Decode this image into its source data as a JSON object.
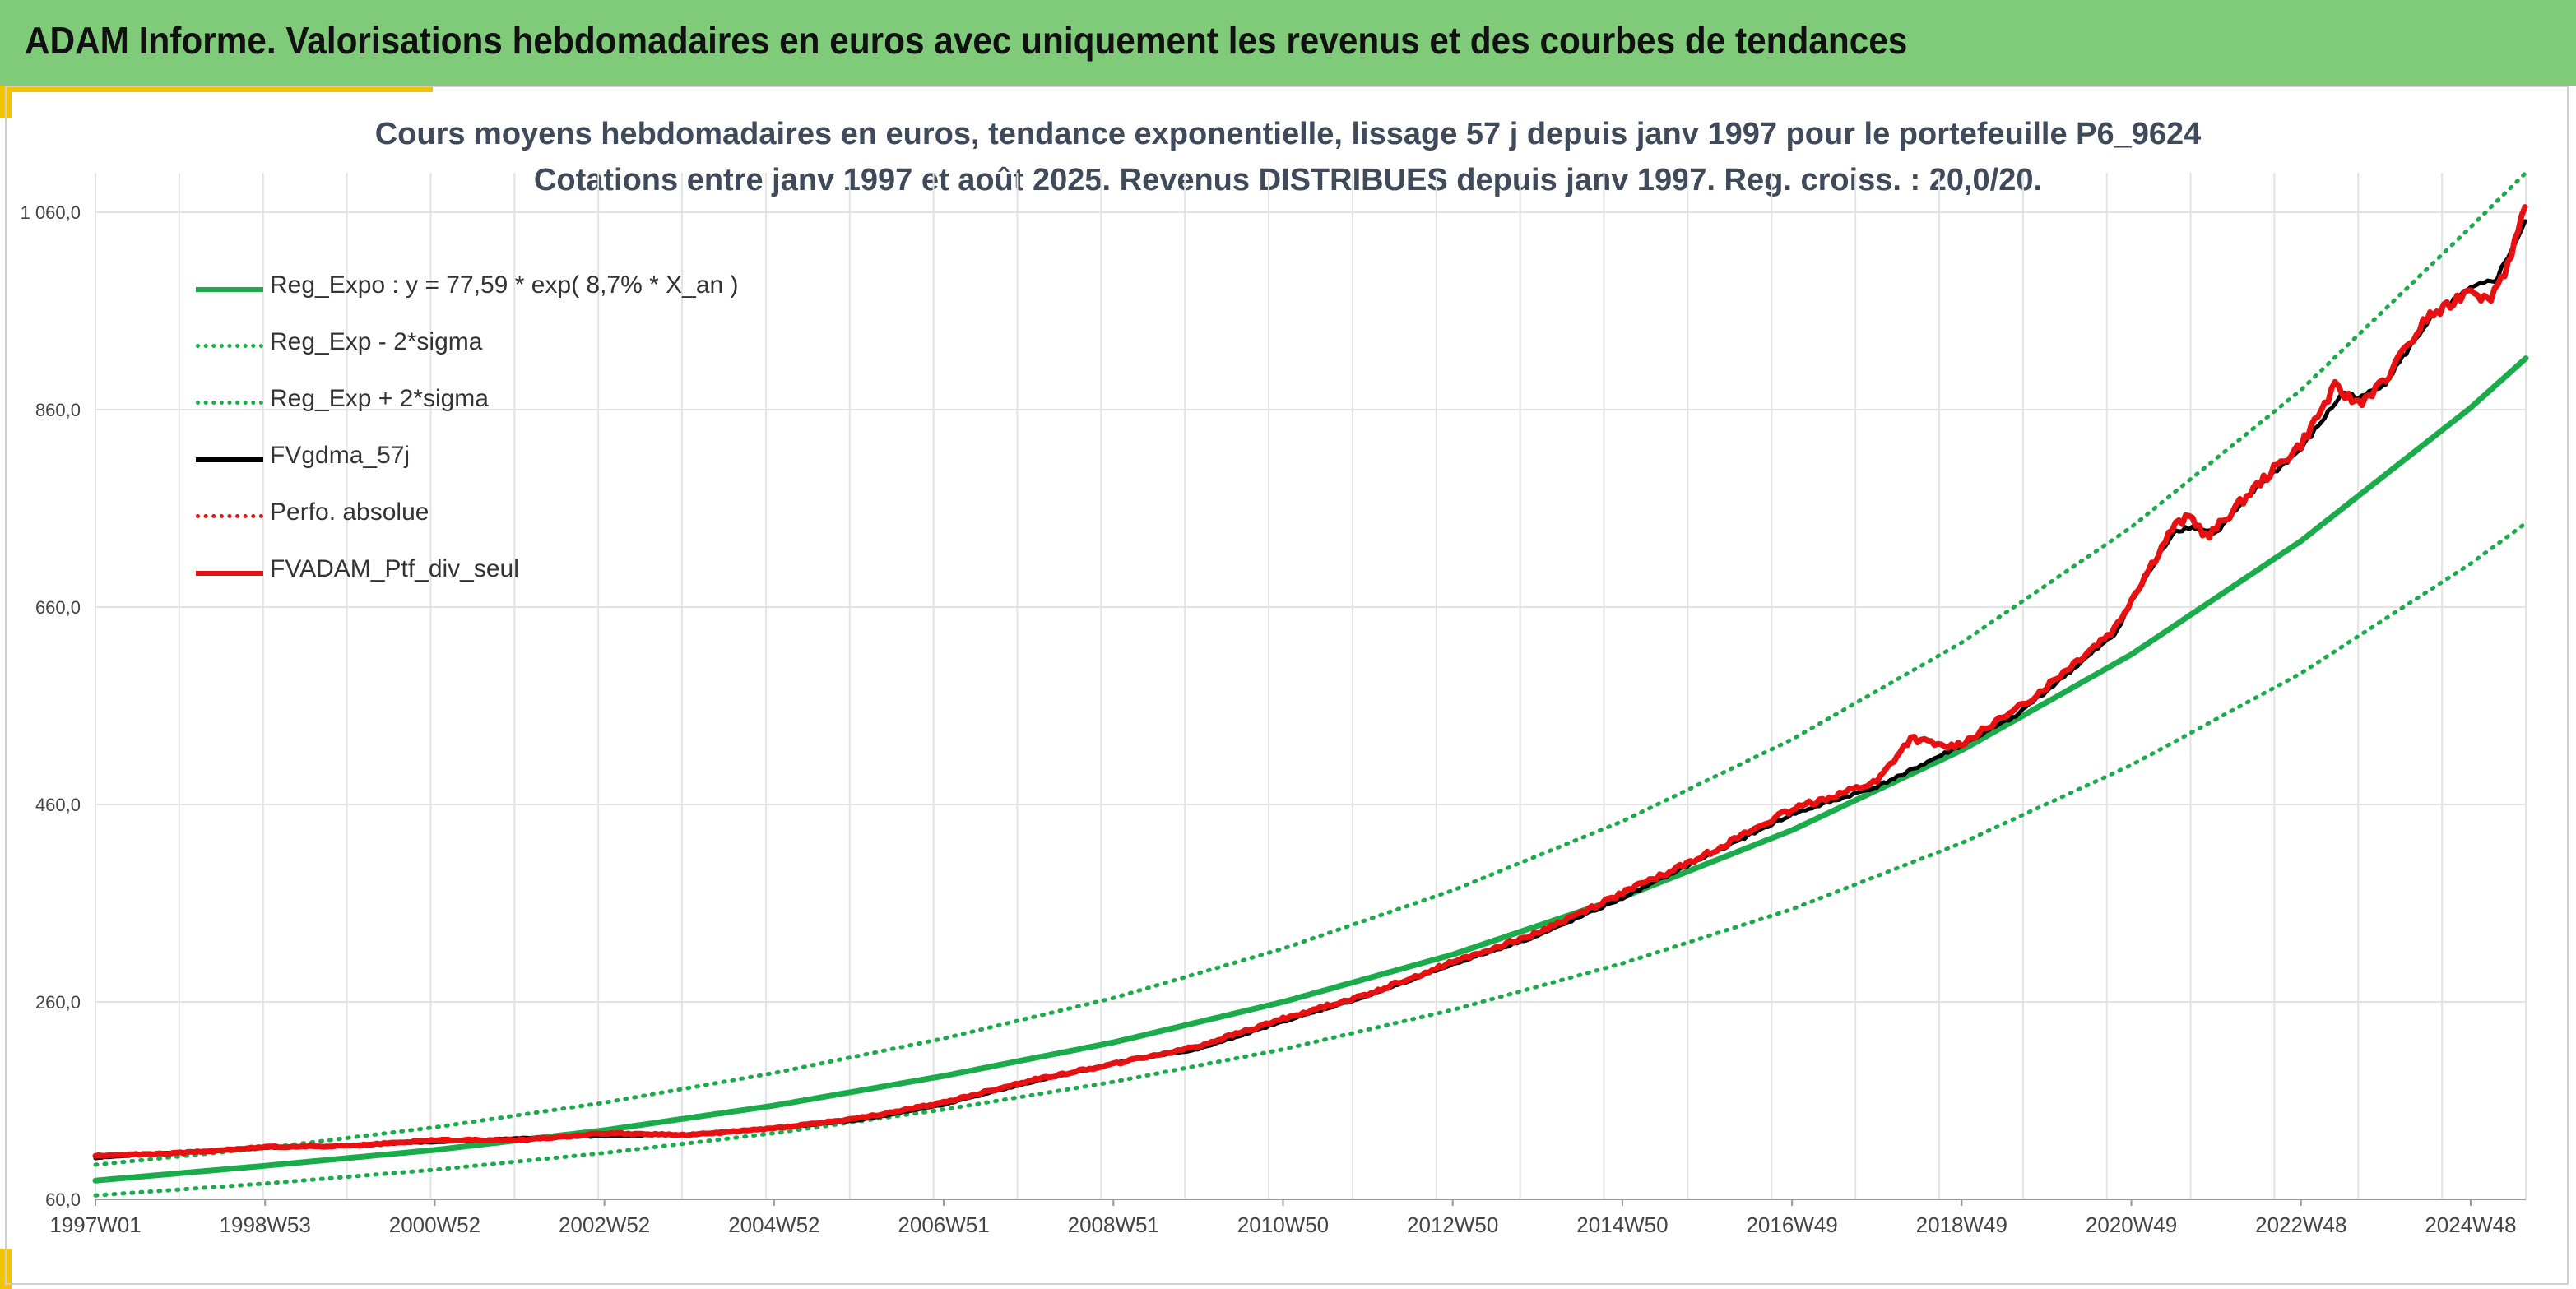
{
  "header": {
    "title": "ADAM Informe. Valorisations hebdomadaires en euros avec uniquement les revenus et des courbes de tendances"
  },
  "colors": {
    "header_bg": "#7fcb7a",
    "accent": "#f2c400",
    "trend": "#1aab4a",
    "price": "#e81010",
    "smooth": "#000000"
  },
  "chart_data": {
    "type": "line",
    "title_line1": "Cours moyens hebdomadaires en euros, tendance exponentielle, lissage 57 j depuis janv 1997 pour le portefeuille P6_9624",
    "title_line2": "Cotations entre janv 1997 et août 2025. Revenus DISTRIBUES depuis janv 1997. Reg. croiss. : 20,0/20.",
    "xlabel": "",
    "ylabel": "",
    "ylim": [
      60,
      1100
    ],
    "yticks": [
      60,
      260,
      460,
      660,
      860,
      1060
    ],
    "ytick_labels": [
      "60,0",
      "260,0",
      "460,0",
      "660,0",
      "860,0",
      "1 060,0"
    ],
    "x_unit": "year (fractional)",
    "xlim": [
      1997.0,
      2025.65
    ],
    "xticks": [
      1997.0,
      1999.0,
      2001.0,
      2003.0,
      2005.0,
      2007.0,
      2009.0,
      2011.0,
      2013.0,
      2015.0,
      2017.0,
      2019.0,
      2021.0,
      2023.0,
      2025.0
    ],
    "xtick_labels": [
      "1997W01",
      "1998W53",
      "2000W52",
      "2002W52",
      "2004W52",
      "2006W51",
      "2008W51",
      "2010W50",
      "2012W50",
      "2014W50",
      "2016W49",
      "2018W49",
      "2020W49",
      "2022W48",
      "2024W48"
    ],
    "grid": "vertical and horizontal",
    "legend_position": "top-left",
    "legend": [
      {
        "label": "Reg_Expo : y = 77,59 * exp( 8,7% *  X_an )",
        "color": "#1aab4a",
        "style": "solid"
      },
      {
        "label": "Reg_Exp - 2*sigma",
        "color": "#1aab4a",
        "style": "dotted"
      },
      {
        "label": "Reg_Exp + 2*sigma",
        "color": "#1aab4a",
        "style": "dotted"
      },
      {
        "label": "FVgdma_57j",
        "color": "#000000",
        "style": "solid"
      },
      {
        "label": "Perfo. absolue",
        "color": "#e81010",
        "style": "dotted"
      },
      {
        "label": "FVADAM_Ptf_div_seul",
        "color": "#e81010",
        "style": "solid"
      }
    ],
    "series": [
      {
        "name": "Reg_Expo : y = 77,59 * exp( 8,7% *  X_an )",
        "x": [
          1997,
          1999,
          2001,
          2003,
          2005,
          2007,
          2009,
          2011,
          2013,
          2015,
          2017,
          2019,
          2021,
          2023,
          2025,
          2025.65
        ],
        "y": [
          79,
          94,
          110,
          130,
          155,
          185,
          219,
          260,
          308,
          366,
          434,
          515,
          612,
          727,
          862,
          912
        ]
      },
      {
        "name": "Reg_Exp - 2*sigma",
        "x": [
          1997,
          1999,
          2001,
          2003,
          2005,
          2007,
          2009,
          2011,
          2013,
          2015,
          2017,
          2019,
          2021,
          2023,
          2025,
          2025.65
        ],
        "y": [
          64,
          76,
          90,
          107,
          127,
          151,
          179,
          212,
          252,
          299,
          354,
          421,
          500,
          593,
          704,
          745
        ]
      },
      {
        "name": "Reg_Exp + 2*sigma",
        "x": [
          1997,
          1999,
          2001,
          2003,
          2005,
          2007,
          2009,
          2011,
          2013,
          2015,
          2017,
          2019,
          2021,
          2023,
          2025,
          2025.65
        ],
        "y": [
          95,
          112,
          133,
          158,
          188,
          223,
          264,
          314,
          373,
          443,
          526,
          624,
          741,
          880,
          1045,
          1100
        ]
      },
      {
        "name": "FVgdma_57j",
        "x": [
          1997,
          1998,
          1999,
          2000,
          2001,
          2002,
          2003,
          2004,
          2005,
          2006,
          2007,
          2008,
          2009,
          2010,
          2011,
          2012,
          2013,
          2014,
          2015,
          2016,
          2017,
          2018,
          2019,
          2019.6,
          2020,
          2020.8,
          2021,
          2021.5,
          2021.7,
          2022,
          2022.5,
          2023,
          2023.5,
          2023.7,
          2024,
          2024.5,
          2024.7,
          2025,
          2025.3,
          2025.65
        ],
        "y": [
          102,
          108,
          112,
          115,
          118,
          122,
          124,
          126,
          132,
          140,
          156,
          178,
          198,
          212,
          240,
          266,
          298,
          327,
          365,
          408,
          450,
          478,
          520,
          548,
          575,
          632,
          665,
          737,
          741,
          735,
          783,
          820,
          878,
          871,
          888,
          950,
          965,
          982,
          992,
          1050
        ]
      },
      {
        "name": "FVADAM_Ptf_div_seul",
        "x": [
          1997,
          1998,
          1999,
          2000,
          2001,
          2002,
          2003,
          2004,
          2005,
          2006,
          2007,
          2008,
          2009,
          2010,
          2011,
          2012,
          2013,
          2014,
          2015,
          2016,
          2017,
          2018,
          2018.4,
          2018.8,
          2019,
          2019.6,
          2020,
          2020.8,
          2021,
          2021.5,
          2021.7,
          2021.9,
          2022,
          2022.5,
          2023,
          2023.4,
          2023.6,
          2023.7,
          2024,
          2024.5,
          2024.7,
          2025,
          2025.2,
          2025.4,
          2025.65
        ],
        "y": [
          104,
          107,
          113,
          114,
          120,
          120,
          127,
          125,
          132,
          142,
          158,
          180,
          197,
          215,
          243,
          268,
          300,
          330,
          370,
          410,
          455,
          483,
          527,
          518,
          522,
          553,
          580,
          638,
          668,
          742,
          752,
          730,
          740,
          785,
          825,
          883,
          870,
          868,
          890,
          955,
          962,
          985,
          970,
          1000,
          1063
        ]
      }
    ]
  }
}
